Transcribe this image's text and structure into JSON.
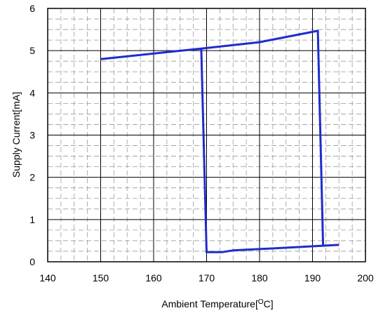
{
  "chart_data": {
    "type": "line",
    "xlabel": "Ambient Temperature[",
    "xlabel_sup": "O",
    "xlabel_end": "C]",
    "ylabel": "Supply Current[mA]",
    "xlim": [
      140,
      200
    ],
    "ylim": [
      0,
      6
    ],
    "x_ticks": [
      140,
      150,
      160,
      170,
      180,
      190,
      200
    ],
    "y_ticks": [
      0,
      1,
      2,
      3,
      4,
      5,
      6
    ],
    "grid": true,
    "minor_grid_dashed": true,
    "line_color": "#1f2ccc",
    "series": [
      {
        "points": [
          [
            150,
            4.8
          ],
          [
            169,
            5.05
          ],
          [
            180,
            5.2
          ],
          [
            191,
            5.47
          ],
          [
            192,
            0.38
          ],
          [
            195,
            0.4
          ]
        ]
      },
      {
        "points": [
          [
            169,
            5.05
          ],
          [
            170,
            0.23
          ],
          [
            173,
            0.23
          ],
          [
            175,
            0.27
          ],
          [
            180,
            0.3
          ],
          [
            192,
            0.38
          ]
        ]
      }
    ]
  }
}
